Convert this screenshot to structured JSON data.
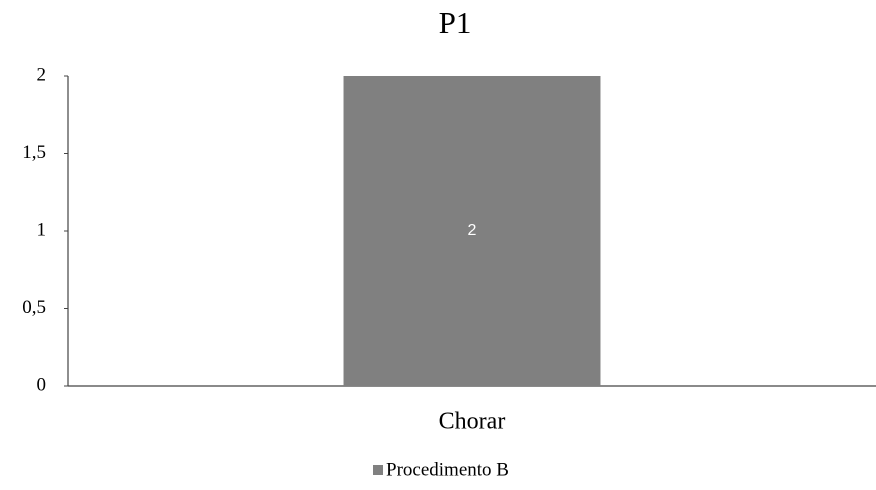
{
  "chart_data": {
    "type": "bar",
    "title": "P1",
    "categories": [
      "Chorar"
    ],
    "series": [
      {
        "name": "Procedimento B",
        "color": "#808080",
        "values": [
          2
        ]
      }
    ],
    "ylim": [
      0,
      2
    ],
    "yticks": [
      0,
      {
        "value": 0.5,
        "label": "0,5"
      },
      1,
      {
        "value": 1.5,
        "label": "1,5"
      },
      2
    ],
    "grid": false,
    "legend": "bottom"
  }
}
